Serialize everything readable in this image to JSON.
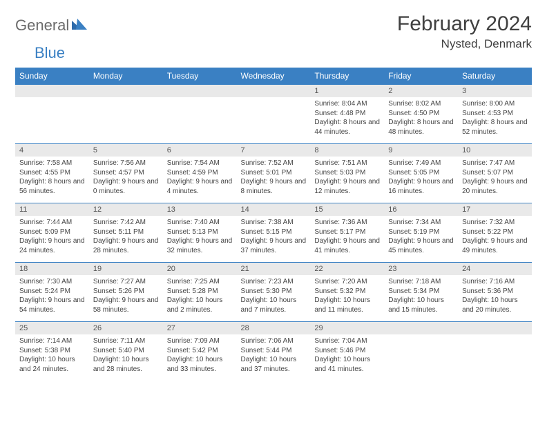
{
  "logo": {
    "general": "General",
    "blue": "Blue"
  },
  "title": "February 2024",
  "location": "Nysted, Denmark",
  "colors": {
    "header_bg": "#3a80c3",
    "header_text": "#ffffff",
    "daynum_bg": "#e9e9e9",
    "border": "#3a80c3",
    "text": "#444444",
    "title_text": "#404040",
    "logo_gray": "#6b6b6b",
    "logo_blue": "#3a80c3"
  },
  "weekdays": [
    "Sunday",
    "Monday",
    "Tuesday",
    "Wednesday",
    "Thursday",
    "Friday",
    "Saturday"
  ],
  "weeks": [
    [
      {
        "day": "",
        "sunrise": "",
        "sunset": "",
        "daylight": ""
      },
      {
        "day": "",
        "sunrise": "",
        "sunset": "",
        "daylight": ""
      },
      {
        "day": "",
        "sunrise": "",
        "sunset": "",
        "daylight": ""
      },
      {
        "day": "",
        "sunrise": "",
        "sunset": "",
        "daylight": ""
      },
      {
        "day": "1",
        "sunrise": "Sunrise: 8:04 AM",
        "sunset": "Sunset: 4:48 PM",
        "daylight": "Daylight: 8 hours and 44 minutes."
      },
      {
        "day": "2",
        "sunrise": "Sunrise: 8:02 AM",
        "sunset": "Sunset: 4:50 PM",
        "daylight": "Daylight: 8 hours and 48 minutes."
      },
      {
        "day": "3",
        "sunrise": "Sunrise: 8:00 AM",
        "sunset": "Sunset: 4:53 PM",
        "daylight": "Daylight: 8 hours and 52 minutes."
      }
    ],
    [
      {
        "day": "4",
        "sunrise": "Sunrise: 7:58 AM",
        "sunset": "Sunset: 4:55 PM",
        "daylight": "Daylight: 8 hours and 56 minutes."
      },
      {
        "day": "5",
        "sunrise": "Sunrise: 7:56 AM",
        "sunset": "Sunset: 4:57 PM",
        "daylight": "Daylight: 9 hours and 0 minutes."
      },
      {
        "day": "6",
        "sunrise": "Sunrise: 7:54 AM",
        "sunset": "Sunset: 4:59 PM",
        "daylight": "Daylight: 9 hours and 4 minutes."
      },
      {
        "day": "7",
        "sunrise": "Sunrise: 7:52 AM",
        "sunset": "Sunset: 5:01 PM",
        "daylight": "Daylight: 9 hours and 8 minutes."
      },
      {
        "day": "8",
        "sunrise": "Sunrise: 7:51 AM",
        "sunset": "Sunset: 5:03 PM",
        "daylight": "Daylight: 9 hours and 12 minutes."
      },
      {
        "day": "9",
        "sunrise": "Sunrise: 7:49 AM",
        "sunset": "Sunset: 5:05 PM",
        "daylight": "Daylight: 9 hours and 16 minutes."
      },
      {
        "day": "10",
        "sunrise": "Sunrise: 7:47 AM",
        "sunset": "Sunset: 5:07 PM",
        "daylight": "Daylight: 9 hours and 20 minutes."
      }
    ],
    [
      {
        "day": "11",
        "sunrise": "Sunrise: 7:44 AM",
        "sunset": "Sunset: 5:09 PM",
        "daylight": "Daylight: 9 hours and 24 minutes."
      },
      {
        "day": "12",
        "sunrise": "Sunrise: 7:42 AM",
        "sunset": "Sunset: 5:11 PM",
        "daylight": "Daylight: 9 hours and 28 minutes."
      },
      {
        "day": "13",
        "sunrise": "Sunrise: 7:40 AM",
        "sunset": "Sunset: 5:13 PM",
        "daylight": "Daylight: 9 hours and 32 minutes."
      },
      {
        "day": "14",
        "sunrise": "Sunrise: 7:38 AM",
        "sunset": "Sunset: 5:15 PM",
        "daylight": "Daylight: 9 hours and 37 minutes."
      },
      {
        "day": "15",
        "sunrise": "Sunrise: 7:36 AM",
        "sunset": "Sunset: 5:17 PM",
        "daylight": "Daylight: 9 hours and 41 minutes."
      },
      {
        "day": "16",
        "sunrise": "Sunrise: 7:34 AM",
        "sunset": "Sunset: 5:19 PM",
        "daylight": "Daylight: 9 hours and 45 minutes."
      },
      {
        "day": "17",
        "sunrise": "Sunrise: 7:32 AM",
        "sunset": "Sunset: 5:22 PM",
        "daylight": "Daylight: 9 hours and 49 minutes."
      }
    ],
    [
      {
        "day": "18",
        "sunrise": "Sunrise: 7:30 AM",
        "sunset": "Sunset: 5:24 PM",
        "daylight": "Daylight: 9 hours and 54 minutes."
      },
      {
        "day": "19",
        "sunrise": "Sunrise: 7:27 AM",
        "sunset": "Sunset: 5:26 PM",
        "daylight": "Daylight: 9 hours and 58 minutes."
      },
      {
        "day": "20",
        "sunrise": "Sunrise: 7:25 AM",
        "sunset": "Sunset: 5:28 PM",
        "daylight": "Daylight: 10 hours and 2 minutes."
      },
      {
        "day": "21",
        "sunrise": "Sunrise: 7:23 AM",
        "sunset": "Sunset: 5:30 PM",
        "daylight": "Daylight: 10 hours and 7 minutes."
      },
      {
        "day": "22",
        "sunrise": "Sunrise: 7:20 AM",
        "sunset": "Sunset: 5:32 PM",
        "daylight": "Daylight: 10 hours and 11 minutes."
      },
      {
        "day": "23",
        "sunrise": "Sunrise: 7:18 AM",
        "sunset": "Sunset: 5:34 PM",
        "daylight": "Daylight: 10 hours and 15 minutes."
      },
      {
        "day": "24",
        "sunrise": "Sunrise: 7:16 AM",
        "sunset": "Sunset: 5:36 PM",
        "daylight": "Daylight: 10 hours and 20 minutes."
      }
    ],
    [
      {
        "day": "25",
        "sunrise": "Sunrise: 7:14 AM",
        "sunset": "Sunset: 5:38 PM",
        "daylight": "Daylight: 10 hours and 24 minutes."
      },
      {
        "day": "26",
        "sunrise": "Sunrise: 7:11 AM",
        "sunset": "Sunset: 5:40 PM",
        "daylight": "Daylight: 10 hours and 28 minutes."
      },
      {
        "day": "27",
        "sunrise": "Sunrise: 7:09 AM",
        "sunset": "Sunset: 5:42 PM",
        "daylight": "Daylight: 10 hours and 33 minutes."
      },
      {
        "day": "28",
        "sunrise": "Sunrise: 7:06 AM",
        "sunset": "Sunset: 5:44 PM",
        "daylight": "Daylight: 10 hours and 37 minutes."
      },
      {
        "day": "29",
        "sunrise": "Sunrise: 7:04 AM",
        "sunset": "Sunset: 5:46 PM",
        "daylight": "Daylight: 10 hours and 41 minutes."
      },
      {
        "day": "",
        "sunrise": "",
        "sunset": "",
        "daylight": ""
      },
      {
        "day": "",
        "sunrise": "",
        "sunset": "",
        "daylight": ""
      }
    ]
  ]
}
